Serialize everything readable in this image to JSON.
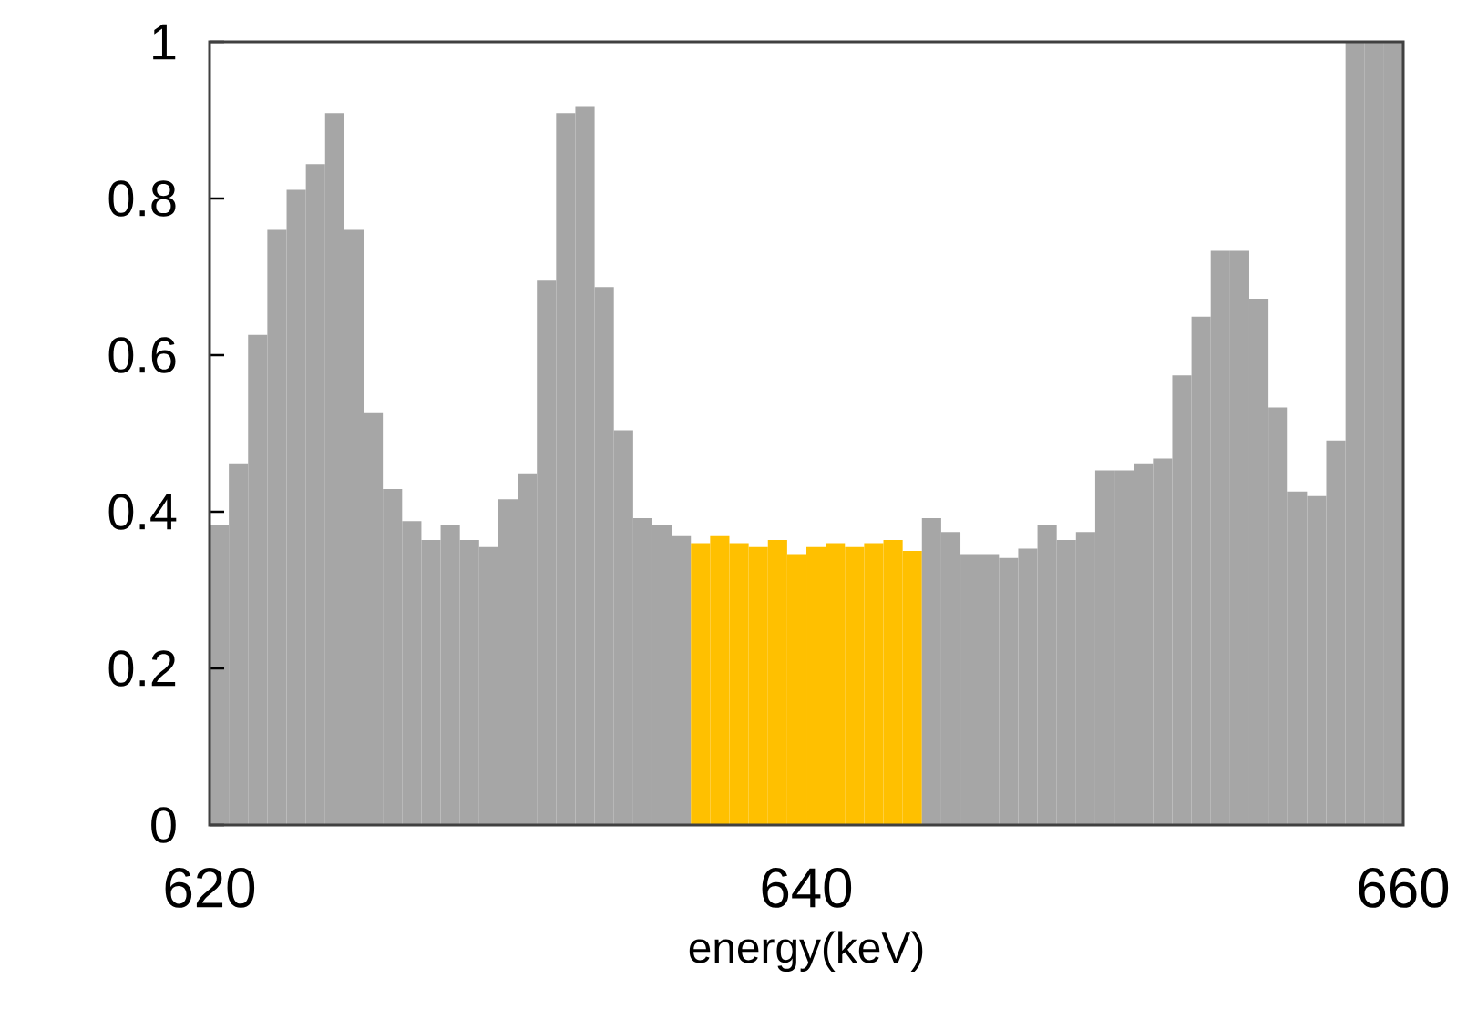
{
  "chart_data": {
    "type": "histogram",
    "xlabel": "energy(keV)",
    "bins": [
      620,
      620.645,
      621.29,
      621.935,
      622.581,
      623.226,
      623.871,
      624.516,
      625.161,
      625.806,
      626.452,
      627.097,
      627.742,
      628.387,
      629.032,
      629.677,
      630.323,
      630.968,
      631.613,
      632.258,
      632.903,
      633.548,
      634.194,
      634.839,
      635.484,
      636.129,
      636.774,
      637.419,
      638.065,
      638.71,
      639.355,
      640,
      640.645,
      641.29,
      641.935,
      642.581,
      643.226,
      643.871,
      644.516,
      645.161,
      645.806,
      646.452,
      647.097,
      647.742,
      648.387,
      649.032,
      649.677,
      650.323,
      650.968,
      651.613,
      652.258,
      652.903,
      653.548,
      654.194,
      654.839,
      655.484,
      656.129,
      656.774,
      657.419,
      658.065,
      658.71,
      659.355,
      660
    ],
    "values": [
      0.383,
      0.462,
      0.626,
      0.76,
      0.811,
      0.844,
      0.909,
      0.76,
      0.527,
      0.429,
      0.388,
      0.364,
      0.383,
      0.364,
      0.355,
      0.416,
      0.449,
      0.695,
      0.909,
      0.918,
      0.687,
      0.504,
      0.392,
      0.383,
      0.369,
      0.36,
      0.369,
      0.36,
      0.355,
      0.364,
      0.346,
      0.355,
      0.36,
      0.355,
      0.36,
      0.364,
      0.35,
      0.392,
      0.374,
      0.346,
      0.346,
      0.341,
      0.353,
      0.383,
      0.364,
      0.374,
      0.453,
      0.453,
      0.462,
      0.468,
      0.574,
      0.649,
      0.733,
      0.733,
      0.672,
      0.533,
      0.426,
      0.42,
      0.491,
      1,
      1,
      1
    ],
    "colors": [
      "#a6a6a6",
      "#a6a6a6",
      "#a6a6a6",
      "#a6a6a6",
      "#a6a6a6",
      "#a6a6a6",
      "#a6a6a6",
      "#a6a6a6",
      "#a6a6a6",
      "#a6a6a6",
      "#a6a6a6",
      "#a6a6a6",
      "#a6a6a6",
      "#a6a6a6",
      "#a6a6a6",
      "#a6a6a6",
      "#a6a6a6",
      "#a6a6a6",
      "#a6a6a6",
      "#a6a6a6",
      "#a6a6a6",
      "#a6a6a6",
      "#a6a6a6",
      "#a6a6a6",
      "#a6a6a6",
      "#ffc000",
      "#ffc000",
      "#ffc000",
      "#ffc000",
      "#ffc000",
      "#ffc000",
      "#ffc000",
      "#ffc000",
      "#ffc000",
      "#ffc000",
      "#ffc000",
      "#ffc000",
      "#a6a6a6",
      "#a6a6a6",
      "#a6a6a6",
      "#a6a6a6",
      "#a6a6a6",
      "#a6a6a6",
      "#a6a6a6",
      "#a6a6a6",
      "#a6a6a6",
      "#a6a6a6",
      "#a6a6a6",
      "#a6a6a6",
      "#a6a6a6",
      "#a6a6a6",
      "#a6a6a6",
      "#a6a6a6",
      "#a6a6a6",
      "#a6a6a6",
      "#a6a6a6",
      "#a6a6a6",
      "#a6a6a6",
      "#a6a6a6",
      "#a6a6a6",
      "#a6a6a6",
      "#a6a6a6"
    ],
    "xlim": [
      620,
      660
    ],
    "ylim": [
      0,
      1
    ],
    "xticks": [
      620,
      640,
      660
    ],
    "yticks": [
      0,
      0.2,
      0.4,
      0.6,
      0.8,
      1
    ],
    "grid": false
  }
}
